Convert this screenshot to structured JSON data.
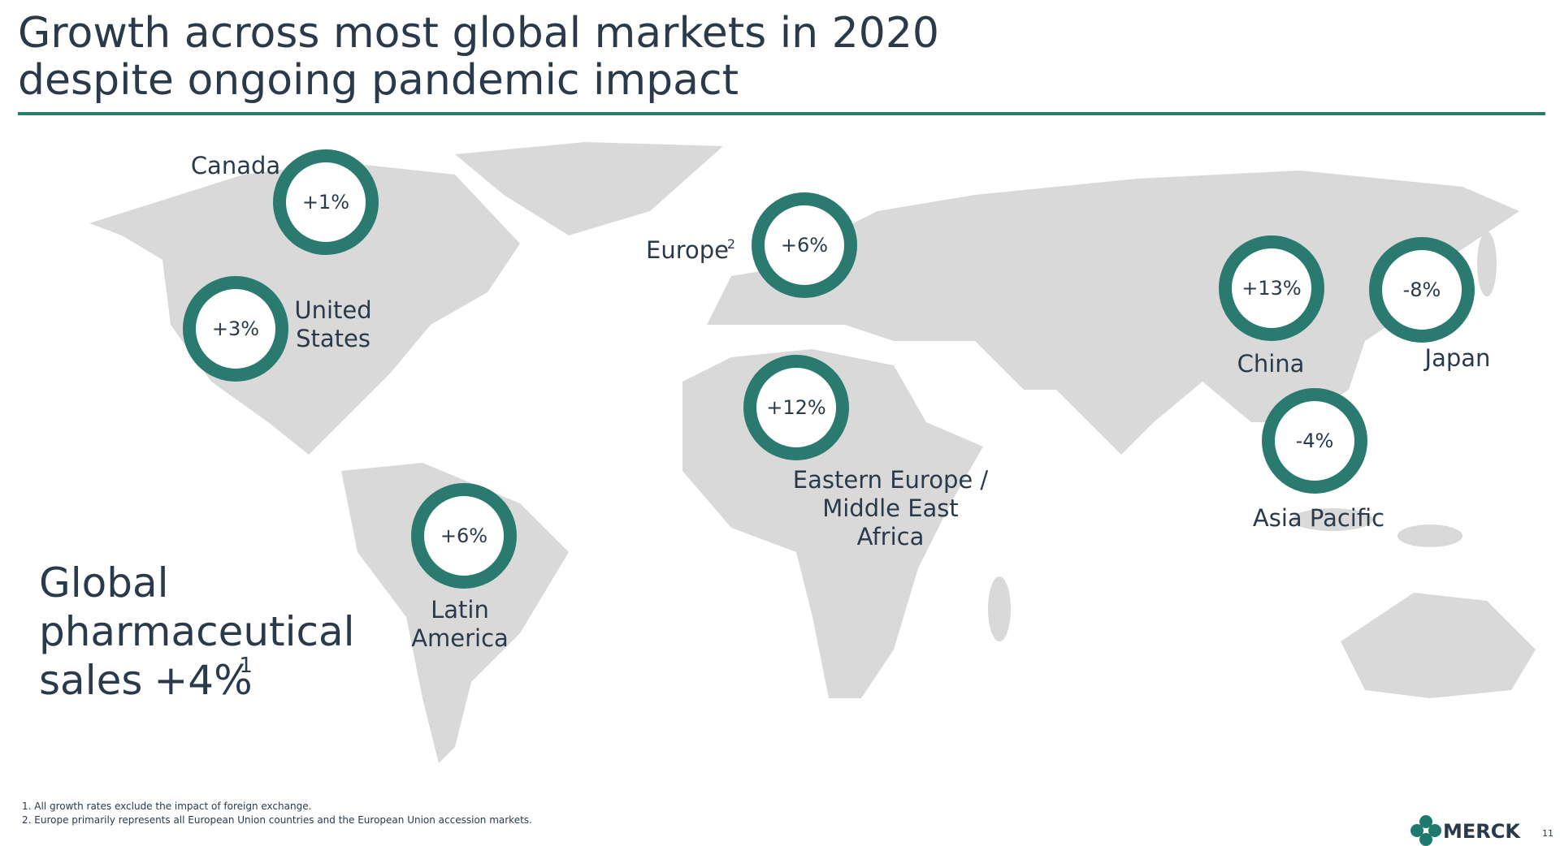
{
  "header": {
    "title_lines": [
      "Growth across most global markets in 2020",
      "despite ongoing pandemic impact"
    ]
  },
  "regions": [
    {
      "name_lines": [
        "Canada"
      ],
      "value": "+1%"
    },
    {
      "name_lines": [
        "United",
        "States"
      ],
      "value": "+3%"
    },
    {
      "name_lines": [
        "Europe"
      ],
      "sup": "2",
      "value": "+6%"
    },
    {
      "name_lines": [
        "China"
      ],
      "value": "+13%"
    },
    {
      "name_lines": [
        "Japan"
      ],
      "value": "-8%"
    },
    {
      "name_lines": [
        "Eastern Europe /",
        "Middle East",
        "Africa"
      ],
      "value": "+12%"
    },
    {
      "name_lines": [
        "Asia Pacific"
      ],
      "value": "-4%"
    },
    {
      "name_lines": [
        "Latin",
        "America"
      ],
      "value": "+6%"
    }
  ],
  "summary": {
    "lines": [
      "Global",
      "pharmaceutical",
      "sales"
    ],
    "value": "+4%",
    "sup": "1"
  },
  "footnotes": [
    "1. All growth rates exclude the impact of foreign exchange.",
    "2. Europe primarily represents all European Union countries and the European Union accession markets."
  ],
  "logo": "MERCK",
  "page_number": "11"
}
